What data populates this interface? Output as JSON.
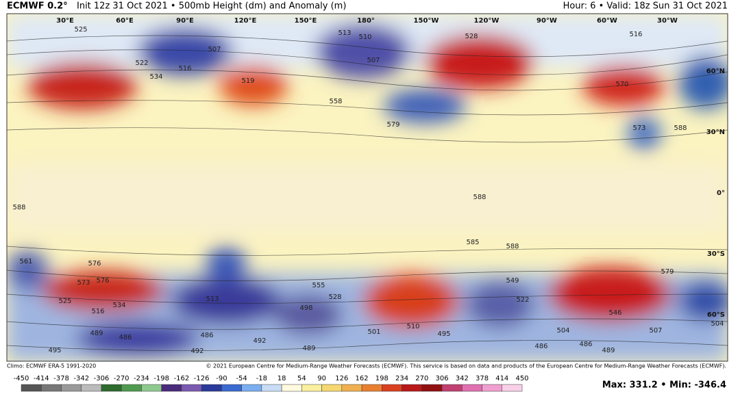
{
  "header": {
    "model": "ECMWF 0.2°",
    "description": "Init 12z 31 Oct 2021 • 500mb Height (dm) and Anomaly (m)",
    "valid": "Hour: 6 • Valid: 18z Sun 31 Oct 2021"
  },
  "map": {
    "longitude_labels": [
      "30°E",
      "60°E",
      "90°E",
      "120°E",
      "150°E",
      "180°",
      "150°W",
      "120°W",
      "90°W",
      "60°W",
      "30°W"
    ],
    "latitude_labels": [
      "60°N",
      "30°N",
      "0°",
      "30°S",
      "60°S"
    ],
    "contour_labels": [
      "525",
      "507",
      "522",
      "534",
      "516",
      "519",
      "510",
      "513",
      "507",
      "528",
      "558",
      "579",
      "570",
      "573",
      "588",
      "516",
      "588",
      "588",
      "588",
      "585",
      "561",
      "576",
      "573",
      "576",
      "534",
      "516",
      "525",
      "513",
      "498",
      "528",
      "555",
      "510",
      "501",
      "495",
      "489",
      "486",
      "486",
      "492",
      "489",
      "492",
      "495",
      "549",
      "522",
      "546",
      "579",
      "504",
      "486",
      "486",
      "489",
      "507",
      "504"
    ]
  },
  "footer": {
    "climo": "Climo: ECMWF ERA-5 1991-2020",
    "copyright": "© 2021 European Centre for Medium-Range Weather Forecasts (ECMWF). This service is based on data and products of the European Centre for Medium-Range Weather Forecasts (ECMWF).",
    "colorbar_labels": [
      -450,
      -414,
      -378,
      -342,
      -306,
      -270,
      -234,
      -198,
      -162,
      -126,
      -90,
      -54,
      -18,
      18,
      54,
      90,
      126,
      162,
      198,
      234,
      270,
      306,
      342,
      378,
      414,
      450
    ],
    "extremes": "Max: 331.2 • Min: -346.4"
  }
}
